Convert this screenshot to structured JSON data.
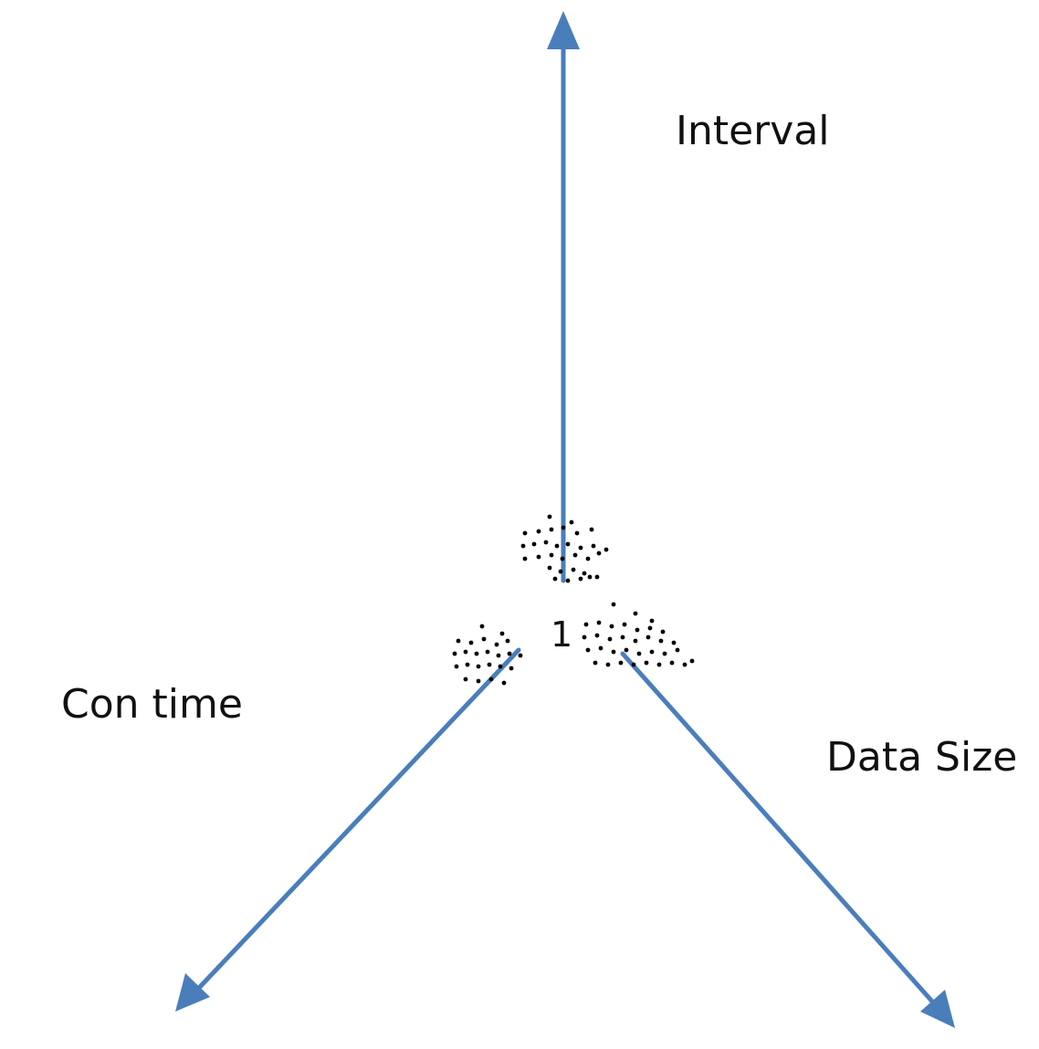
{
  "diagram": {
    "axes": [
      {
        "id": "interval",
        "label": "Interval"
      },
      {
        "id": "con-time",
        "label": "Con time"
      },
      {
        "id": "data-size",
        "label": "Data Size"
      }
    ],
    "origin_label": "1",
    "colors": {
      "axis": "#4a7ebb",
      "dot": "#000000",
      "text": "#111111",
      "background": "#ffffff"
    }
  }
}
